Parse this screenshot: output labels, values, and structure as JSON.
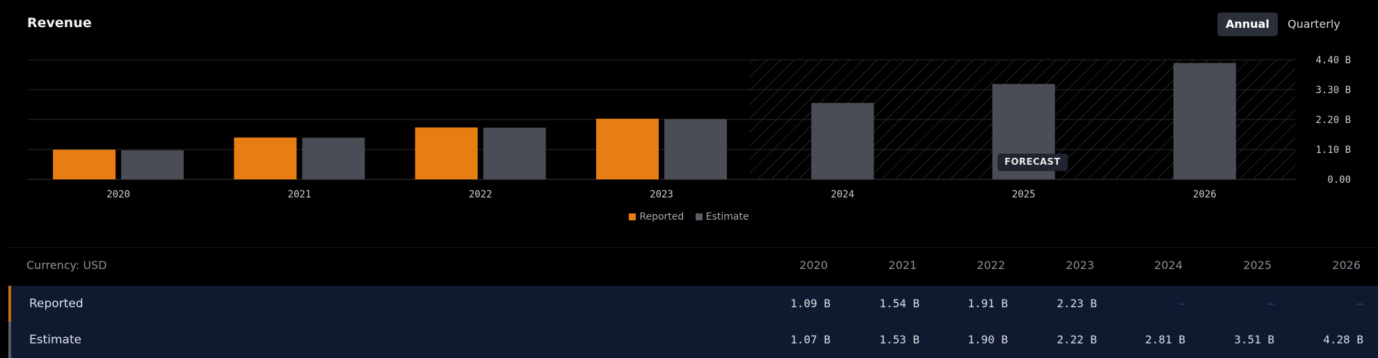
{
  "title": "Revenue",
  "toggles": {
    "annual": "Annual",
    "quarterly": "Quarterly"
  },
  "forecast_label": "FORECAST",
  "legend": [
    {
      "label": "Reported",
      "color": "#e87d13"
    },
    {
      "label": "Estimate",
      "color": "#5b5e66"
    }
  ],
  "chart_data": {
    "type": "bar",
    "categories": [
      "2020",
      "2021",
      "2022",
      "2023",
      "2024",
      "2025",
      "2026"
    ],
    "series": [
      {
        "name": "Reported",
        "values": [
          1.09,
          1.54,
          1.91,
          2.23,
          null,
          null,
          null
        ],
        "color": "#e87d13"
      },
      {
        "name": "Estimate",
        "values": [
          1.07,
          1.53,
          1.9,
          2.22,
          2.81,
          3.51,
          4.28
        ],
        "color": "#4a4d55"
      }
    ],
    "y_ticks": [
      "0.00",
      "1.10 B",
      "2.20 B",
      "3.30 B",
      "4.40 B"
    ],
    "y_tick_values": [
      0,
      1.1,
      2.2,
      3.3,
      4.4
    ],
    "ylim": [
      0,
      4.4
    ],
    "forecast_from_category": "2024",
    "grid": true
  },
  "table": {
    "currency_label": "Currency: USD",
    "years": [
      "2020",
      "2021",
      "2022",
      "2023",
      "2024",
      "2025",
      "2026"
    ],
    "rows": [
      {
        "label": "Reported",
        "values": [
          "1.09 B",
          "1.54 B",
          "1.91 B",
          "2.23 B",
          "—",
          "—",
          "—"
        ]
      },
      {
        "label": "Estimate",
        "values": [
          "1.07 B",
          "1.53 B",
          "1.90 B",
          "2.22 B",
          "2.81 B",
          "3.51 B",
          "4.28 B"
        ]
      }
    ]
  }
}
